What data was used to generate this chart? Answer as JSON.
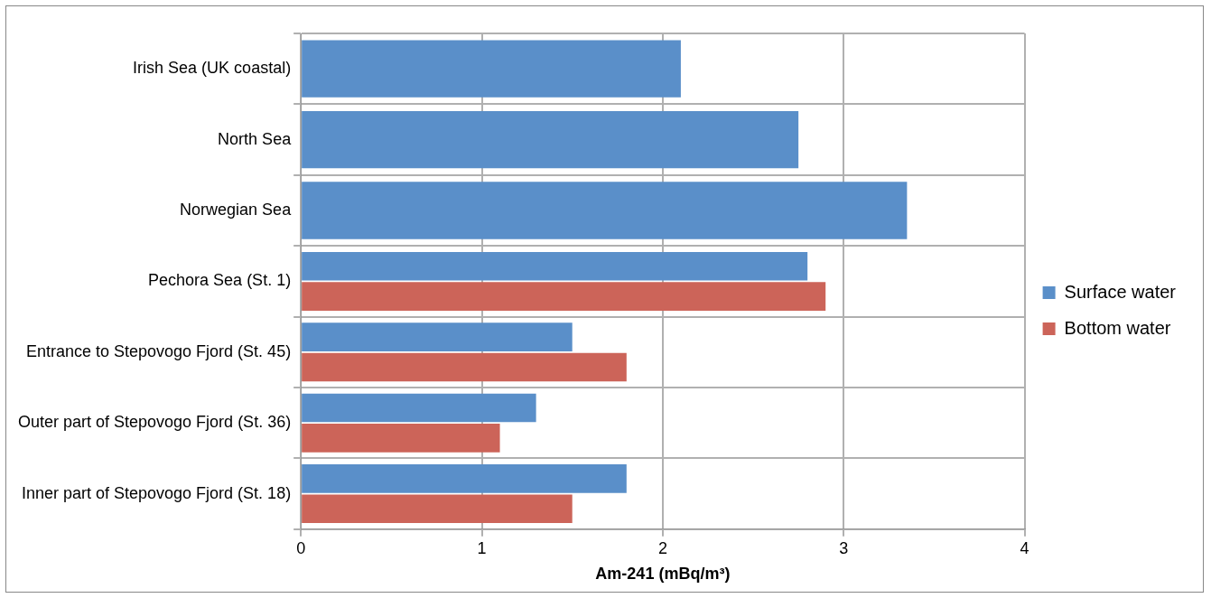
{
  "chart_data": {
    "type": "bar",
    "orientation": "horizontal",
    "xlabel": "Am-241 (mBq/m³)",
    "categories": [
      "Irish Sea (UK coastal)",
      "North Sea",
      "Norwegian Sea",
      "Pechora Sea (St. 1)",
      "Entrance to Stepovogo Fjord (St. 45)",
      "Outer part of Stepovogo Fjord (St. 36)",
      "Inner part of Stepovogo Fjord (St. 18)"
    ],
    "series": [
      {
        "name": "Surface water",
        "color": "#5a8fc9",
        "values": [
          2.1,
          2.75,
          3.35,
          2.8,
          1.5,
          1.3,
          1.8
        ]
      },
      {
        "name": "Bottom water",
        "color": "#cc6459",
        "values": [
          null,
          null,
          null,
          2.9,
          1.8,
          1.1,
          1.5
        ]
      }
    ],
    "xlim": [
      0,
      4
    ],
    "xticks": [
      0,
      1,
      2,
      3,
      4
    ],
    "grid": true,
    "legend": "right"
  }
}
